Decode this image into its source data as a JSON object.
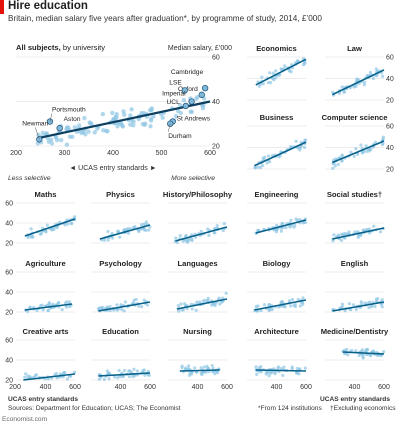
{
  "header": {
    "title": "Hire education",
    "subtitle": "Britain, median salary five years after graduation*, by programme of study, 2014, £’000"
  },
  "main_panel": {
    "title_bold": "All subjects,",
    "title_rest": " by university",
    "ylabel": "Median salary, £’000",
    "xlabel": "◄ UCAS entry standards ►",
    "less_selective": "Less selective",
    "more_selective": "More selective"
  },
  "footer": {
    "sources": "Sources: Department for Education; UCAS; The Economist",
    "note_star": "*From 124 institutions",
    "note_dagger": "†Excluding economics",
    "ucas_left": "UCAS entry standards",
    "ucas_right": "UCAS entry standards",
    "site": "Economist.com"
  },
  "chart_data": [
    {
      "type": "scatter",
      "title": "All subjects, by university",
      "xlim": [
        200,
        600
      ],
      "ylim": [
        20,
        60
      ],
      "xticks": [
        200,
        300,
        400,
        500,
        600
      ],
      "yticks": [
        20,
        40,
        60
      ],
      "trend": [
        [
          245,
          23.5
        ],
        [
          600,
          40
        ]
      ],
      "labeled_points": [
        {
          "name": "Cambridge",
          "x": 590,
          "y": 46
        },
        {
          "name": "Oxford",
          "x": 583,
          "y": 43
        },
        {
          "name": "LSE",
          "x": 548,
          "y": 45
        },
        {
          "name": "Imperial",
          "x": 562,
          "y": 40
        },
        {
          "name": "UCL",
          "x": 550,
          "y": 38
        },
        {
          "name": "St Andrews",
          "x": 523,
          "y": 31
        },
        {
          "name": "Durham",
          "x": 518,
          "y": 30
        },
        {
          "name": "Portsmouth",
          "x": 270,
          "y": 31
        },
        {
          "name": "Aston",
          "x": 290,
          "y": 28
        },
        {
          "name": "Newman",
          "x": 248,
          "y": 23
        }
      ]
    },
    {
      "type": "scatter",
      "title": "Economics",
      "xlim": [
        200,
        600
      ],
      "ylim": [
        20,
        60
      ],
      "trend": [
        [
          260,
          34
        ],
        [
          600,
          58
        ]
      ]
    },
    {
      "type": "scatter",
      "title": "Law",
      "xlim": [
        200,
        600
      ],
      "ylim": [
        20,
        60
      ],
      "trend": [
        [
          250,
          25
        ],
        [
          600,
          48
        ]
      ]
    },
    {
      "type": "scatter",
      "title": "Business",
      "xlim": [
        200,
        600
      ],
      "ylim": [
        20,
        60
      ],
      "trend": [
        [
          250,
          23
        ],
        [
          600,
          45
        ]
      ]
    },
    {
      "type": "scatter",
      "title": "Computer science",
      "xlim": [
        200,
        600
      ],
      "ylim": [
        20,
        60
      ],
      "trend": [
        [
          250,
          26
        ],
        [
          600,
          46
        ]
      ]
    },
    {
      "type": "scatter",
      "title": "Maths",
      "xlim": [
        200,
        600
      ],
      "ylim": [
        20,
        60
      ],
      "trend": [
        [
          260,
          27
        ],
        [
          600,
          44
        ]
      ]
    },
    {
      "type": "scatter",
      "title": "Physics",
      "xlim": [
        200,
        600
      ],
      "ylim": [
        20,
        60
      ],
      "trend": [
        [
          260,
          24
        ],
        [
          600,
          38
        ]
      ]
    },
    {
      "type": "scatter",
      "title": "History/Philosophy",
      "xlim": [
        200,
        600
      ],
      "ylim": [
        20,
        60
      ],
      "trend": [
        [
          250,
          22
        ],
        [
          600,
          36
        ]
      ]
    },
    {
      "type": "scatter",
      "title": "Engineering",
      "xlim": [
        200,
        600
      ],
      "ylim": [
        20,
        60
      ],
      "trend": [
        [
          260,
          30
        ],
        [
          600,
          43
        ]
      ]
    },
    {
      "type": "scatter",
      "title": "Social studies†",
      "xlim": [
        200,
        600
      ],
      "ylim": [
        20,
        60
      ],
      "trend": [
        [
          250,
          24
        ],
        [
          600,
          35
        ]
      ]
    },
    {
      "type": "scatter",
      "title": "Agriculture",
      "xlim": [
        200,
        600
      ],
      "ylim": [
        20,
        60
      ],
      "trend": [
        [
          260,
          22
        ],
        [
          580,
          28
        ]
      ]
    },
    {
      "type": "scatter",
      "title": "Psychology",
      "xlim": [
        200,
        600
      ],
      "ylim": [
        20,
        60
      ],
      "trend": [
        [
          250,
          21
        ],
        [
          600,
          30
        ]
      ]
    },
    {
      "type": "scatter",
      "title": "Languages",
      "xlim": [
        200,
        600
      ],
      "ylim": [
        20,
        60
      ],
      "trend": [
        [
          260,
          23
        ],
        [
          600,
          33
        ]
      ]
    },
    {
      "type": "scatter",
      "title": "Biology",
      "xlim": [
        200,
        600
      ],
      "ylim": [
        20,
        60
      ],
      "trend": [
        [
          250,
          22
        ],
        [
          600,
          32
        ]
      ]
    },
    {
      "type": "scatter",
      "title": "English",
      "xlim": [
        200,
        600
      ],
      "ylim": [
        20,
        60
      ],
      "trend": [
        [
          250,
          21
        ],
        [
          600,
          30
        ]
      ]
    },
    {
      "type": "scatter",
      "title": "Creative arts",
      "xlim": [
        200,
        600
      ],
      "ylim": [
        20,
        60
      ],
      "trend": [
        [
          250,
          20
        ],
        [
          600,
          26
        ]
      ]
    },
    {
      "type": "scatter",
      "title": "Education",
      "xlim": [
        200,
        600
      ],
      "ylim": [
        20,
        60
      ],
      "trend": [
        [
          250,
          24
        ],
        [
          600,
          27
        ]
      ]
    },
    {
      "type": "scatter",
      "title": "Nursing",
      "xlim": [
        200,
        600
      ],
      "ylim": [
        20,
        60
      ],
      "trend": [
        [
          280,
          29
        ],
        [
          550,
          30
        ]
      ]
    },
    {
      "type": "scatter",
      "title": "Architecture",
      "xlim": [
        200,
        600
      ],
      "ylim": [
        20,
        60
      ],
      "trend": [
        [
          260,
          30
        ],
        [
          600,
          29
        ]
      ]
    },
    {
      "type": "scatter",
      "title": "Medicine/Dentistry",
      "xlim": [
        200,
        600
      ],
      "ylim": [
        20,
        60
      ],
      "trend": [
        [
          320,
          48
        ],
        [
          600,
          46
        ]
      ]
    }
  ],
  "colors": {
    "dot": "#8ec6e4",
    "dot_labeled": "#7fb8da",
    "trend": "#08618a",
    "trend_main": "#0d3f60",
    "grid": "#d9d9d9",
    "accent": "#e3120b"
  }
}
